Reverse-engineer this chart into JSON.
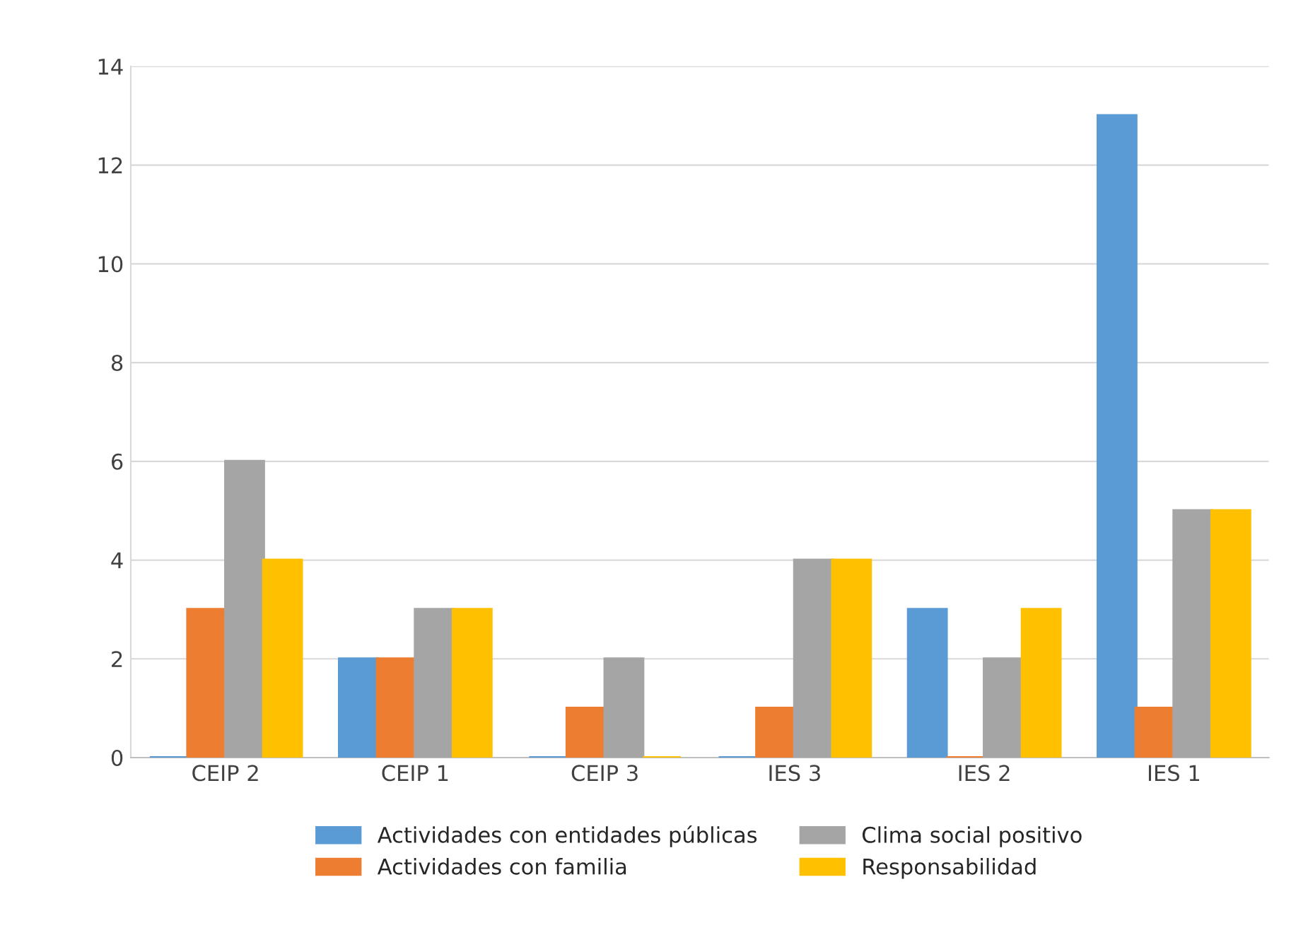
{
  "chart_data": {
    "type": "bar",
    "categories": [
      "CEIP 2",
      "CEIP 1",
      "CEIP 3",
      "IES 3",
      "IES 2",
      "IES 1"
    ],
    "series": [
      {
        "name": "Actividades con entidades públicas",
        "color": "#5b9bd5",
        "values": [
          0,
          2,
          0,
          0,
          3,
          13
        ]
      },
      {
        "name": "Actividades con familia",
        "color": "#ed7d31",
        "values": [
          3,
          2,
          1,
          1,
          0,
          1
        ]
      },
      {
        "name": "Clima social positivo",
        "color": "#a5a5a5",
        "values": [
          6,
          3,
          2,
          4,
          2,
          5
        ]
      },
      {
        "name": "Responsabilidad",
        "color": "#ffc000",
        "values": [
          4,
          3,
          0,
          4,
          3,
          5
        ]
      }
    ],
    "ylim": [
      0,
      14
    ],
    "yticks": [
      0,
      2,
      4,
      6,
      8,
      10,
      12,
      14
    ],
    "grid": "y",
    "legend": "bottom"
  }
}
